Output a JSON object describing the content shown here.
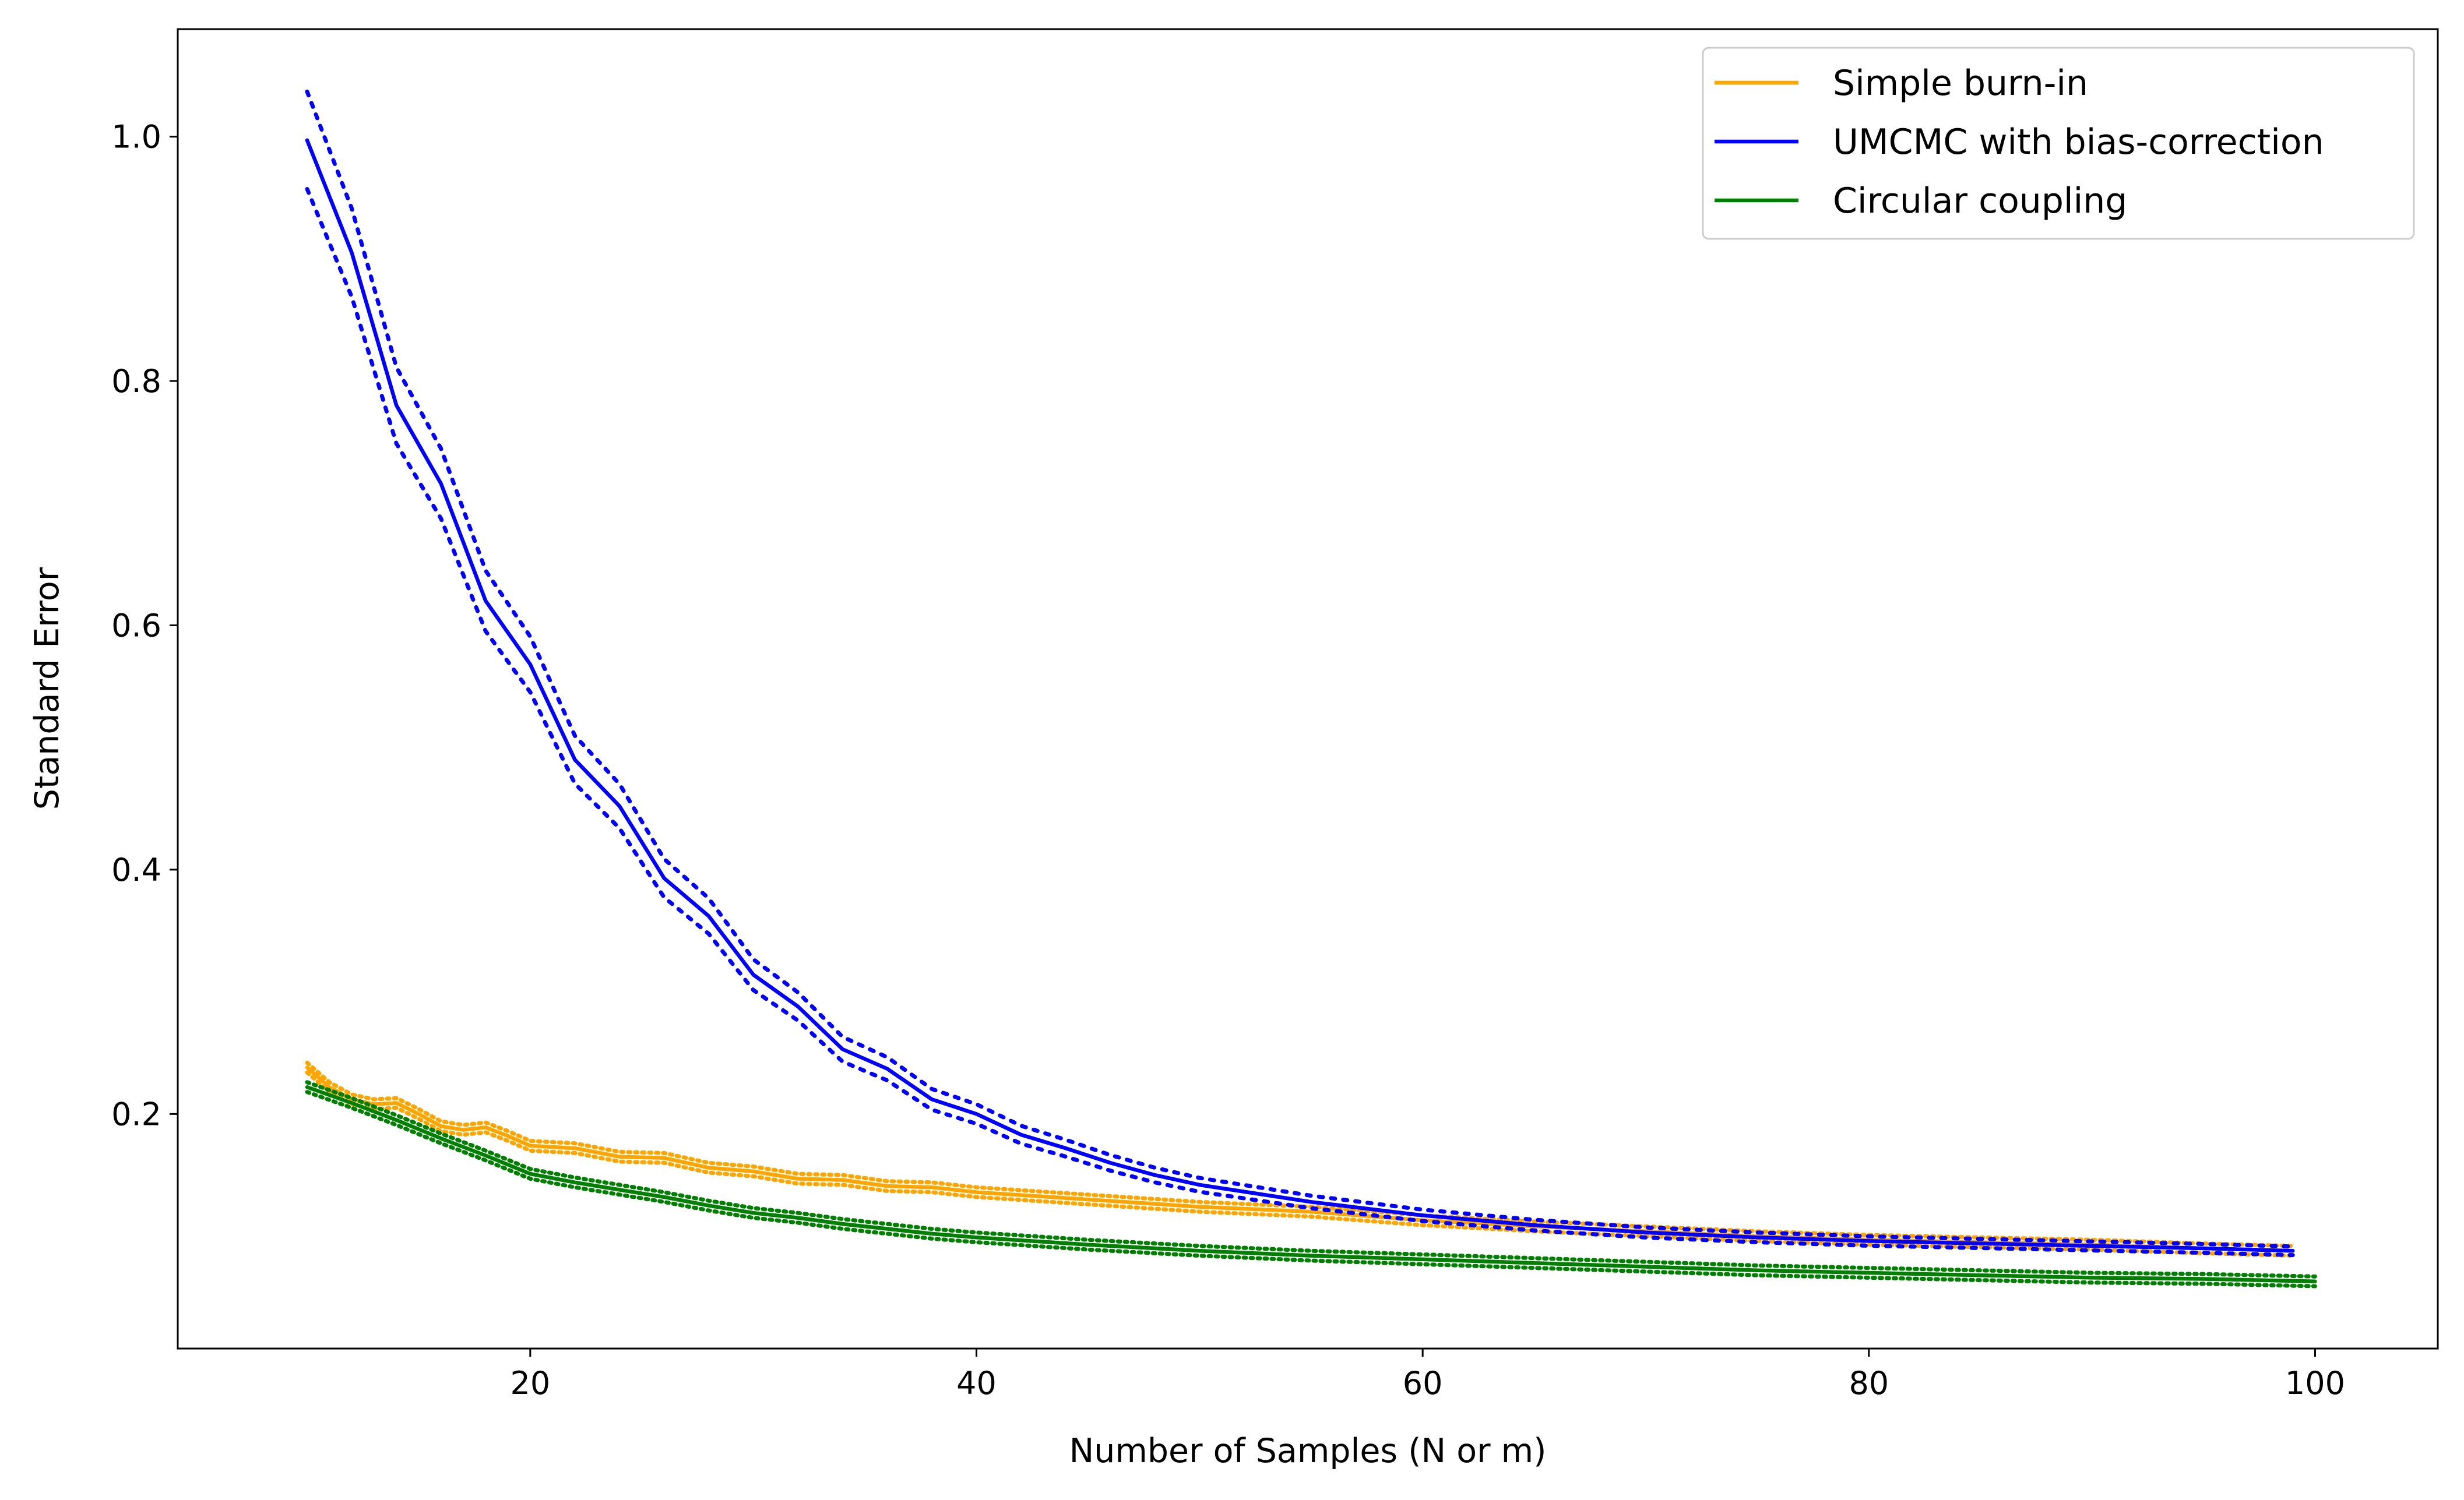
{
  "chart_data": {
    "type": "line",
    "xlabel": "Number of Samples (N or m)",
    "ylabel": "Standard Error",
    "xlim": [
      4.2,
      105.5
    ],
    "ylim": [
      0.008,
      1.088
    ],
    "xticks": [
      20,
      40,
      60,
      80,
      100
    ],
    "yticks": [
      0.2,
      0.4,
      0.6,
      0.8,
      1.0
    ],
    "xtick_labels": [
      "20",
      "40",
      "60",
      "80",
      "100"
    ],
    "ytick_labels": [
      "0.2",
      "0.4",
      "0.6",
      "0.8",
      "1.0"
    ],
    "grid": false,
    "legend_position": "top-right",
    "series": [
      {
        "name": "Simple burn-in",
        "color": "#ffa500",
        "x": [
          10,
          11,
          12,
          13,
          14,
          15,
          16,
          17,
          18,
          19,
          20,
          22,
          24,
          26,
          28,
          30,
          32,
          34,
          36,
          38,
          40,
          45,
          50,
          55,
          60,
          65,
          70,
          75,
          80,
          85,
          90,
          95,
          99
        ],
        "y": [
          0.238,
          0.222,
          0.212,
          0.208,
          0.209,
          0.2,
          0.19,
          0.187,
          0.189,
          0.182,
          0.174,
          0.172,
          0.165,
          0.164,
          0.156,
          0.153,
          0.147,
          0.146,
          0.141,
          0.14,
          0.136,
          0.13,
          0.124,
          0.12,
          0.113,
          0.108,
          0.104,
          0.1,
          0.097,
          0.095,
          0.093,
          0.09,
          0.088
        ],
        "band": 0.004
      },
      {
        "name": "UMCMC with bias-correction",
        "color": "#0000ff",
        "x": [
          10,
          12,
          14,
          16,
          18,
          20,
          22,
          24,
          26,
          28,
          30,
          32,
          34,
          36,
          38,
          40,
          42,
          44,
          46,
          48,
          50,
          55,
          60,
          65,
          70,
          75,
          80,
          85,
          90,
          95,
          99
        ],
        "y": [
          0.997,
          0.905,
          0.78,
          0.716,
          0.62,
          0.568,
          0.49,
          0.452,
          0.393,
          0.362,
          0.314,
          0.288,
          0.253,
          0.237,
          0.212,
          0.2,
          0.183,
          0.172,
          0.16,
          0.15,
          0.142,
          0.128,
          0.117,
          0.109,
          0.103,
          0.099,
          0.096,
          0.094,
          0.092,
          0.09,
          0.088
        ],
        "band_frac": 0.04
      },
      {
        "name": "Circular coupling",
        "color": "#008000",
        "x": [
          10,
          12,
          14,
          16,
          18,
          20,
          22,
          24,
          26,
          28,
          30,
          32,
          34,
          36,
          38,
          40,
          45,
          50,
          55,
          60,
          65,
          70,
          75,
          80,
          85,
          90,
          95,
          100
        ],
        "y": [
          0.222,
          0.209,
          0.195,
          0.18,
          0.166,
          0.151,
          0.144,
          0.138,
          0.132,
          0.125,
          0.119,
          0.115,
          0.11,
          0.106,
          0.102,
          0.099,
          0.093,
          0.088,
          0.084,
          0.081,
          0.078,
          0.075,
          0.072,
          0.07,
          0.068,
          0.066,
          0.065,
          0.063
        ],
        "band": 0.004
      }
    ]
  }
}
